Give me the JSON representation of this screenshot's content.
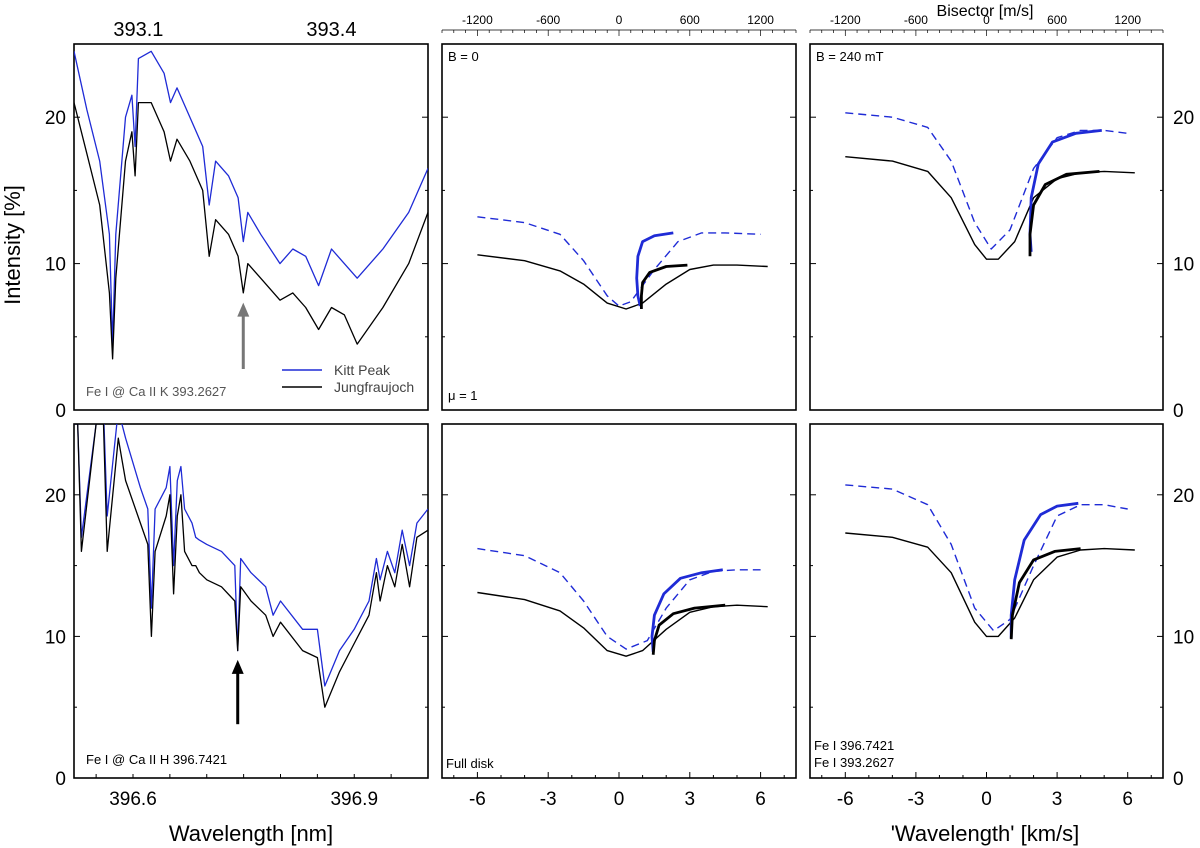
{
  "figure": {
    "y_axis_label": "Intensity [%]",
    "x_axis_label_left": "Wavelength [nm]",
    "x_axis_label_right": "'Wavelength' [km/s]",
    "top_axis_label": "Bisector [m/s]"
  },
  "colors": {
    "kitt_peak": "#1f2bd6",
    "jungfraujoch": "#000000",
    "arrow_top": "#777777",
    "arrow_bottom": "#000000"
  },
  "chart_data": [
    {
      "id": "spectrum-ca-k",
      "type": "line",
      "top_tick_labels": [
        "393.1",
        "393.4"
      ],
      "x_tick_labels": [],
      "y_tick_labels": [
        "0",
        "10",
        "20"
      ],
      "ylim": [
        0,
        25
      ],
      "annotation": "Fe I @ Ca II K 393.2627",
      "legend": {
        "placement": "bottom-right",
        "entries": [
          "Kitt Peak",
          "Jungfraujoch"
        ]
      },
      "arrow_at_nm": 393.263,
      "series": [
        {
          "name": "Kitt Peak",
          "x": [
            393.0,
            393.02,
            393.04,
            393.055,
            393.06,
            393.065,
            393.08,
            393.09,
            393.095,
            393.1,
            393.12,
            393.14,
            393.15,
            393.16,
            393.18,
            393.2,
            393.21,
            393.22,
            393.24,
            393.255,
            393.263,
            393.27,
            393.29,
            393.32,
            393.34,
            393.36,
            393.38,
            393.4,
            393.42,
            393.44,
            393.48,
            393.52,
            393.55
          ],
          "y": [
            24.5,
            20.5,
            17,
            12,
            4.5,
            12,
            20,
            21.5,
            18,
            24,
            24.5,
            23,
            21,
            22,
            20,
            18,
            14,
            17,
            16,
            14.5,
            11.5,
            13.5,
            12,
            10,
            11,
            10.5,
            8.5,
            11,
            10,
            9,
            11,
            13.5,
            16.5
          ]
        },
        {
          "name": "Jungfraujoch",
          "x": [
            393.0,
            393.02,
            393.04,
            393.055,
            393.06,
            393.065,
            393.08,
            393.09,
            393.095,
            393.1,
            393.12,
            393.14,
            393.15,
            393.16,
            393.18,
            393.2,
            393.21,
            393.22,
            393.24,
            393.255,
            393.263,
            393.27,
            393.29,
            393.32,
            393.34,
            393.36,
            393.38,
            393.4,
            393.42,
            393.44,
            393.48,
            393.52,
            393.55
          ],
          "y": [
            21,
            17.5,
            14,
            8,
            3.5,
            9,
            17,
            19,
            16,
            21,
            21,
            19,
            17,
            18.5,
            17,
            15,
            10.5,
            13,
            12,
            10.5,
            8,
            10,
            9,
            7.5,
            8,
            7,
            5.5,
            7,
            6.5,
            4.5,
            7,
            10,
            13.5
          ]
        }
      ]
    },
    {
      "id": "profile-b0-center",
      "type": "line",
      "top_tick_labels": [
        "-1200",
        "-600",
        "0",
        "600",
        "1200"
      ],
      "x_tick_labels": [],
      "ylim": [
        0,
        25
      ],
      "annotations": [
        "B = 0",
        "μ = 1"
      ],
      "series": [
        {
          "name": "",
          "style": "dashed",
          "x": [
            -6,
            -4,
            -2.5,
            -1.5,
            -0.5,
            0,
            0.5,
            1.5,
            2.5,
            3.5,
            4.5,
            6
          ],
          "y": [
            13.2,
            12.8,
            12,
            10.2,
            7.8,
            7.1,
            7.4,
            9.6,
            11.5,
            12.1,
            12.1,
            12.0
          ]
        },
        {
          "name": "",
          "style": "solid",
          "x": [
            -6,
            -4,
            -2.5,
            -1.5,
            -0.5,
            0.3,
            1,
            2,
            3,
            4,
            5,
            6.3
          ],
          "y": [
            10.6,
            10.2,
            9.5,
            8.6,
            7.3,
            6.9,
            7.3,
            8.6,
            9.6,
            9.9,
            9.9,
            9.8
          ]
        },
        {
          "name": "",
          "style": "bisector",
          "x": [
            0.9,
            0.8,
            0.75,
            0.8,
            1.0,
            1.5,
            2.3
          ],
          "y": [
            7.1,
            7.8,
            9,
            10.5,
            11.5,
            11.9,
            12.1
          ]
        },
        {
          "name": "",
          "style": "bisector",
          "x": [
            0.95,
            0.95,
            1.0,
            1.3,
            2.0,
            2.9
          ],
          "y": [
            6.9,
            7.8,
            8.7,
            9.4,
            9.8,
            9.9
          ]
        }
      ]
    },
    {
      "id": "profile-b240-center",
      "type": "line",
      "top_tick_labels": [
        "-1200",
        "-600",
        "0",
        "600",
        "1200"
      ],
      "x_tick_labels": [],
      "y_tick_labels": [
        "0",
        "10",
        "20"
      ],
      "ylim": [
        0,
        25
      ],
      "annotations": [
        "B = 240 mT"
      ],
      "series": [
        {
          "name": "",
          "style": "dashed",
          "x": [
            -6,
            -4,
            -2.5,
            -1.5,
            -0.5,
            0.2,
            1,
            2,
            3,
            4,
            5,
            6
          ],
          "y": [
            20.3,
            20,
            19.3,
            17,
            12.8,
            11,
            12.3,
            16.5,
            18.6,
            19.1,
            19.1,
            18.9
          ]
        },
        {
          "name": "",
          "style": "solid",
          "x": [
            -6,
            -4,
            -2.5,
            -1.5,
            -0.5,
            0,
            0.5,
            1.2,
            2,
            3,
            4,
            5,
            6.3
          ],
          "y": [
            17.3,
            17,
            16.3,
            14.5,
            11.3,
            10.3,
            10.3,
            11.5,
            14.5,
            15.8,
            16.2,
            16.3,
            16.2
          ]
        },
        {
          "name": "",
          "style": "bisector",
          "x": [
            1.9,
            1.85,
            1.9,
            2.2,
            2.8,
            3.8,
            4.9
          ],
          "y": [
            10.8,
            12,
            14.5,
            16.8,
            18.3,
            18.9,
            19.1
          ]
        },
        {
          "name": "",
          "style": "bisector",
          "x": [
            1.85,
            1.85,
            2.0,
            2.5,
            3.4,
            4.8
          ],
          "y": [
            10.5,
            12,
            14,
            15.4,
            16.1,
            16.3
          ]
        }
      ]
    },
    {
      "id": "spectrum-ca-h",
      "type": "line",
      "top_tick_labels": [],
      "x_tick_labels": [
        "396.6",
        "396.9"
      ],
      "y_tick_labels": [
        "0",
        "10",
        "20"
      ],
      "ylim": [
        0,
        25
      ],
      "annotation": "Fe I  @ Ca II H 396.7421",
      "arrow_at_nm": 396.742,
      "series": [
        {
          "name": "Kitt Peak",
          "x": [
            396.52,
            396.525,
            396.53,
            396.55,
            396.56,
            396.565,
            396.58,
            396.585,
            396.59,
            396.61,
            396.62,
            396.625,
            396.63,
            396.645,
            396.65,
            396.655,
            396.66,
            396.665,
            396.67,
            396.68,
            396.685,
            396.69,
            396.7,
            396.72,
            396.738,
            396.742,
            396.746,
            396.76,
            396.78,
            396.79,
            396.8,
            396.83,
            396.85,
            396.86,
            396.88,
            396.9,
            396.92,
            396.93,
            396.935,
            396.945,
            396.955,
            396.965,
            396.975,
            396.985,
            397.0
          ],
          "y": [
            25,
            25,
            17,
            25,
            26,
            18.5,
            26,
            25,
            24,
            20.5,
            19,
            12,
            19,
            20.5,
            22,
            15,
            21,
            22,
            19,
            18,
            17,
            16.8,
            16.5,
            16,
            15,
            9,
            15.5,
            14.5,
            13.5,
            11.5,
            12.5,
            10.5,
            10.5,
            6.5,
            9,
            10.5,
            12.5,
            15.5,
            14,
            16,
            14.5,
            17.5,
            15,
            18,
            19
          ]
        },
        {
          "name": "Jungfraujoch",
          "x": [
            396.52,
            396.525,
            396.53,
            396.55,
            396.56,
            396.565,
            396.58,
            396.585,
            396.59,
            396.61,
            396.62,
            396.625,
            396.63,
            396.645,
            396.65,
            396.655,
            396.66,
            396.665,
            396.67,
            396.68,
            396.685,
            396.69,
            396.7,
            396.72,
            396.738,
            396.742,
            396.746,
            396.76,
            396.78,
            396.79,
            396.8,
            396.83,
            396.85,
            396.86,
            396.88,
            396.9,
            396.92,
            396.93,
            396.935,
            396.945,
            396.955,
            396.965,
            396.975,
            396.985,
            397.0
          ],
          "y": [
            25,
            25,
            16,
            25,
            25,
            16,
            24,
            22.5,
            21,
            18,
            16.5,
            10,
            16,
            18.5,
            20,
            13,
            18.5,
            20,
            16,
            15,
            15,
            14.5,
            14,
            13.5,
            12.5,
            9,
            13.5,
            12.5,
            11.5,
            10,
            11,
            9,
            8.5,
            5,
            7.5,
            9.5,
            11.5,
            14.5,
            12.5,
            15,
            13.5,
            16.5,
            13.5,
            17,
            17.5
          ]
        }
      ]
    },
    {
      "id": "profile-b0-disk",
      "type": "line",
      "top_tick_labels": [],
      "x_tick_labels": [
        "-6",
        "-3",
        "0",
        "3",
        "6"
      ],
      "ylim": [
        0,
        25
      ],
      "annotations": [
        "Full disk"
      ],
      "series": [
        {
          "name": "",
          "style": "dashed",
          "x": [
            -6,
            -4,
            -2.5,
            -1.5,
            -0.5,
            0.3,
            1.2,
            2,
            3,
            4,
            5,
            6
          ],
          "y": [
            16.2,
            15.7,
            14.5,
            12.5,
            10,
            9.1,
            9.7,
            12,
            14,
            14.6,
            14.7,
            14.7
          ]
        },
        {
          "name": "",
          "style": "solid",
          "x": [
            -6,
            -4,
            -2.5,
            -1.5,
            -0.5,
            0.3,
            1,
            2,
            3,
            4,
            5,
            6.3
          ],
          "y": [
            13.1,
            12.6,
            11.8,
            10.6,
            9,
            8.6,
            9,
            10.5,
            11.7,
            12.1,
            12.2,
            12.1
          ]
        },
        {
          "name": "",
          "style": "bisector",
          "x": [
            1.45,
            1.4,
            1.5,
            1.9,
            2.6,
            3.5,
            4.4
          ],
          "y": [
            8.9,
            10,
            11.5,
            13,
            14.1,
            14.5,
            14.7
          ]
        },
        {
          "name": "",
          "style": "bisector",
          "x": [
            1.45,
            1.5,
            1.7,
            2.3,
            3.2,
            4.5
          ],
          "y": [
            8.7,
            9.7,
            10.8,
            11.6,
            12,
            12.2
          ]
        }
      ]
    },
    {
      "id": "profile-b240-disk",
      "type": "line",
      "top_tick_labels": [],
      "x_tick_labels": [
        "-6",
        "-3",
        "0",
        "3",
        "6"
      ],
      "y_tick_labels": [
        "0",
        "10",
        "20"
      ],
      "ylim": [
        0,
        25
      ],
      "annotations": [
        "Fe I 396.7421",
        "Fe I 393.2627"
      ],
      "series": [
        {
          "name": "",
          "style": "dashed",
          "x": [
            -6,
            -4,
            -2.5,
            -1.5,
            -0.5,
            0.3,
            1,
            2,
            3,
            4,
            5,
            6
          ],
          "y": [
            20.7,
            20.4,
            19.3,
            16.5,
            12,
            10.4,
            11.2,
            15,
            18.5,
            19.3,
            19.3,
            19
          ]
        },
        {
          "name": "",
          "style": "solid",
          "x": [
            -6,
            -4,
            -2.5,
            -1.5,
            -0.5,
            0,
            0.5,
            1.2,
            2,
            3,
            4,
            5,
            6.3
          ],
          "y": [
            17.3,
            17,
            16.3,
            14.5,
            11,
            10,
            10,
            11.3,
            14,
            15.6,
            16.1,
            16.2,
            16.1
          ]
        },
        {
          "name": "",
          "style": "bisector",
          "x": [
            1.05,
            1.05,
            1.2,
            1.6,
            2.3,
            3.0,
            3.9
          ],
          "y": [
            9.9,
            11.5,
            14,
            16.8,
            18.6,
            19.2,
            19.4
          ]
        },
        {
          "name": "",
          "style": "bisector",
          "x": [
            1.05,
            1.1,
            1.4,
            2.0,
            2.9,
            4.0
          ],
          "y": [
            9.8,
            11.5,
            13.8,
            15.4,
            16,
            16.2
          ]
        }
      ]
    }
  ]
}
